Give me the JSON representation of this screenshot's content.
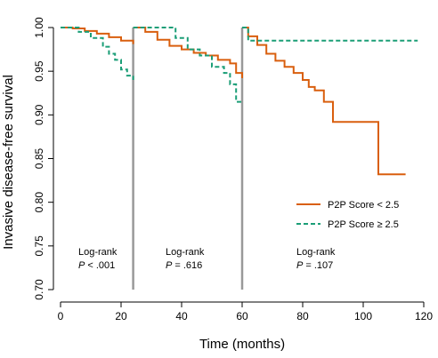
{
  "chart_data": {
    "type": "line",
    "xlabel": "Time (months)",
    "ylabel": "Invasive disease-free survival",
    "xlim": [
      0,
      120
    ],
    "ylim": [
      0.7,
      1.0
    ],
    "x_ticks": [
      "0",
      "20",
      "40",
      "60",
      "80",
      "100",
      "120"
    ],
    "y_ticks": [
      "0.70",
      "0.75",
      "0.80",
      "0.85",
      "0.90",
      "0.95",
      "1.00"
    ],
    "grid": false,
    "legend_position": "right",
    "colors": {
      "low": "#D95F0E",
      "high": "#1B9E77",
      "divider": "#999999"
    },
    "landmark_dividers_x": [
      24,
      60
    ],
    "series": [
      {
        "name": "P2P Score < 2.5",
        "style": "solid",
        "segments": [
          [
            [
              0,
              1.0
            ],
            [
              4,
              0.999
            ],
            [
              8,
              0.996
            ],
            [
              12,
              0.993
            ],
            [
              16,
              0.989
            ],
            [
              20,
              0.985
            ],
            [
              24,
              0.981
            ]
          ],
          [
            [
              24,
              1.0
            ],
            [
              28,
              0.995
            ],
            [
              32,
              0.986
            ],
            [
              36,
              0.979
            ],
            [
              40,
              0.975
            ],
            [
              44,
              0.971
            ],
            [
              48,
              0.968
            ],
            [
              52,
              0.963
            ],
            [
              56,
              0.959
            ],
            [
              58,
              0.948
            ],
            [
              60,
              0.942
            ]
          ],
          [
            [
              60,
              1.0
            ],
            [
              62,
              0.99
            ],
            [
              65,
              0.98
            ],
            [
              68,
              0.97
            ],
            [
              71,
              0.962
            ],
            [
              74,
              0.955
            ],
            [
              77,
              0.948
            ],
            [
              80,
              0.94
            ],
            [
              82,
              0.932
            ],
            [
              84,
              0.928
            ],
            [
              87,
              0.915
            ],
            [
              90,
              0.892
            ],
            [
              105,
              0.892
            ],
            [
              105,
              0.832
            ],
            [
              114,
              0.832
            ]
          ]
        ]
      },
      {
        "name": "P2P Score ≥ 2.5",
        "style": "dashed",
        "segments": [
          [
            [
              0,
              1.0
            ],
            [
              6,
              0.995
            ],
            [
              10,
              0.988
            ],
            [
              14,
              0.978
            ],
            [
              16,
              0.97
            ],
            [
              18,
              0.963
            ],
            [
              20,
              0.952
            ],
            [
              22,
              0.945
            ],
            [
              24,
              0.94
            ]
          ],
          [
            [
              24,
              1.0
            ],
            [
              36,
              1.0
            ],
            [
              38,
              0.988
            ],
            [
              42,
              0.975
            ],
            [
              46,
              0.968
            ],
            [
              50,
              0.955
            ],
            [
              54,
              0.948
            ],
            [
              56,
              0.935
            ],
            [
              58,
              0.915
            ],
            [
              60,
              0.915
            ]
          ],
          [
            [
              60,
              1.0
            ],
            [
              62,
              0.985
            ],
            [
              118,
              0.985
            ]
          ]
        ]
      }
    ],
    "annotations": [
      {
        "label": "Log-rank",
        "stat_prefix": "P",
        "stat_rest": " < .001"
      },
      {
        "label": "Log-rank",
        "stat_prefix": "P",
        "stat_rest": " = .616"
      },
      {
        "label": "Log-rank",
        "stat_prefix": "P",
        "stat_rest": " = .107"
      }
    ]
  }
}
